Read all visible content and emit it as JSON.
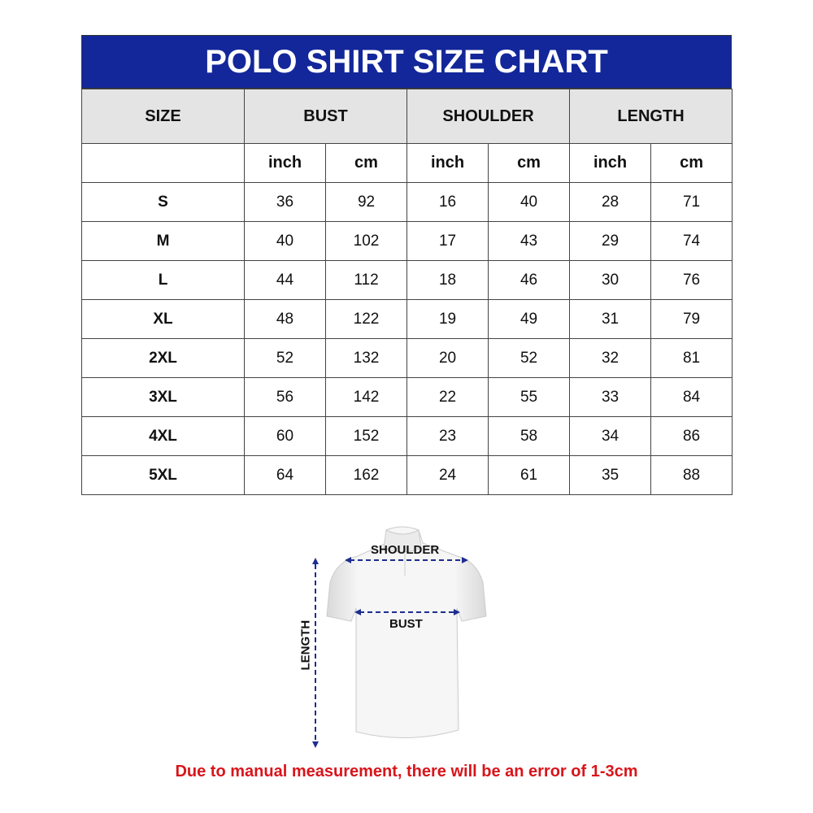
{
  "title": "POLO SHIRT SIZE CHART",
  "headers": [
    "SIZE",
    "BUST",
    "SHOULDER",
    "LENGTH"
  ],
  "units": [
    "inch",
    "cm",
    "inch",
    "cm",
    "inch",
    "cm"
  ],
  "rows": [
    [
      "S",
      "36",
      "92",
      "16",
      "40",
      "28",
      "71"
    ],
    [
      "M",
      "40",
      "102",
      "17",
      "43",
      "29",
      "74"
    ],
    [
      "L",
      "44",
      "112",
      "18",
      "46",
      "30",
      "76"
    ],
    [
      "XL",
      "48",
      "122",
      "19",
      "49",
      "31",
      "79"
    ],
    [
      "2XL",
      "52",
      "132",
      "20",
      "52",
      "32",
      "81"
    ],
    [
      "3XL",
      "56",
      "142",
      "22",
      "55",
      "33",
      "84"
    ],
    [
      "4XL",
      "60",
      "152",
      "23",
      "58",
      "34",
      "86"
    ],
    [
      "5XL",
      "64",
      "162",
      "24",
      "61",
      "35",
      "88"
    ]
  ],
  "diagram": {
    "shoulder": "SHOULDER",
    "bust": "BUST",
    "length": "LENGTH"
  },
  "note": "Due to manual measurement, there will be an error of 1-3cm",
  "colors": {
    "header_blue": "#13279a",
    "header_gray": "#e4e4e4",
    "note_red": "#d8151b",
    "arrow_blue": "#1e2d8f"
  }
}
